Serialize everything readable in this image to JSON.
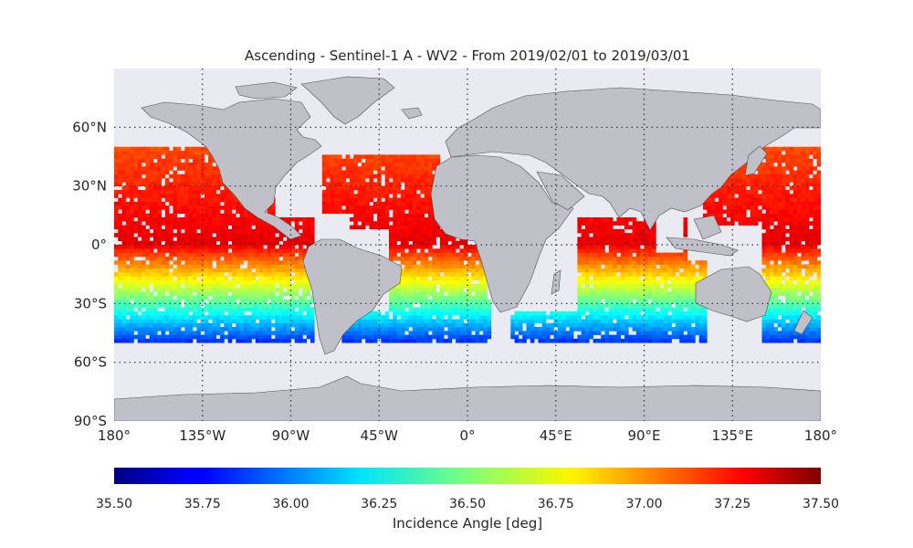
{
  "title": "Ascending - Sentinel-1 A - WV2 - From 2019/02/01 to 2019/03/01",
  "map": {
    "background_color": "#eaeaf2",
    "land_color": "#c0c0c8",
    "coastline_color": "#505058",
    "grid_style": "dotted",
    "lat_ticks": [
      {
        "value": 60,
        "label": "60°N"
      },
      {
        "value": 30,
        "label": "30°N"
      },
      {
        "value": 0,
        "label": "0°"
      },
      {
        "value": -30,
        "label": "30°S"
      },
      {
        "value": -60,
        "label": "60°S"
      },
      {
        "value": -90,
        "label": "90°S"
      }
    ],
    "lon_ticks": [
      {
        "value": -180,
        "label": "180°"
      },
      {
        "value": -135,
        "label": "135°W"
      },
      {
        "value": -90,
        "label": "90°W"
      },
      {
        "value": -45,
        "label": "45°W"
      },
      {
        "value": 0,
        "label": "0°"
      },
      {
        "value": 45,
        "label": "45°E"
      },
      {
        "value": 90,
        "label": "90°E"
      },
      {
        "value": 135,
        "label": "135°E"
      },
      {
        "value": 180,
        "label": "180°"
      }
    ],
    "lon_range": [
      -180,
      180
    ],
    "lat_range": [
      -90,
      90
    ]
  },
  "colorbar": {
    "label": "Incidence Angle [deg]",
    "colormap": "jet",
    "range": [
      35.5,
      37.5
    ],
    "ticks": [
      "35.50",
      "35.75",
      "36.00",
      "36.25",
      "36.50",
      "36.75",
      "37.00",
      "37.25",
      "37.50"
    ]
  },
  "data_field": {
    "description_of_values": "incidence angle grid over oceans, roughly 50°N to 50°S",
    "equator_value": 37.3,
    "south_45_value": 36.0
  }
}
